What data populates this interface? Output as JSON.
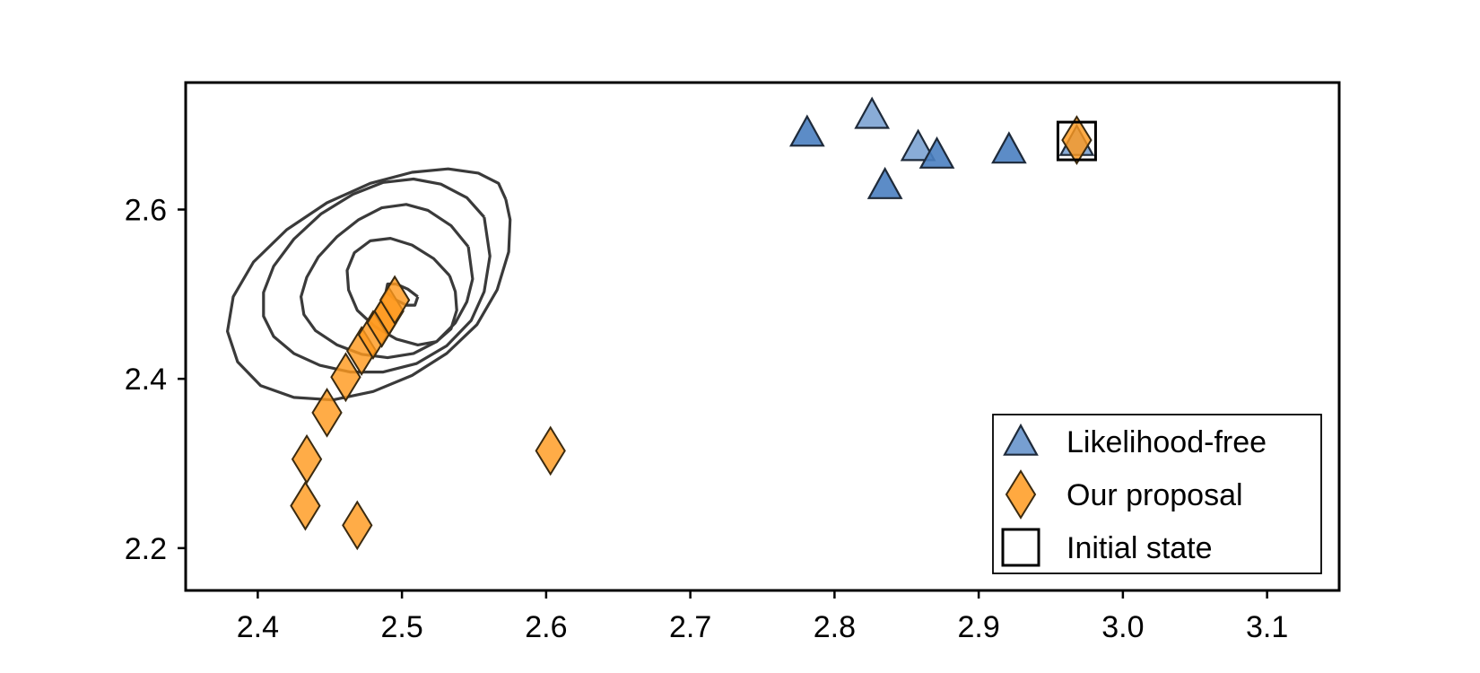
{
  "chart_data": {
    "type": "scatter",
    "title": "",
    "xlabel": "",
    "ylabel": "",
    "xlim": [
      2.35,
      3.15
    ],
    "ylim": [
      2.15,
      2.75
    ],
    "x_ticks": [
      "2.4",
      "2.5",
      "2.6",
      "2.7",
      "2.8",
      "2.9",
      "3.0",
      "3.1"
    ],
    "y_ticks": [
      "2.2",
      "2.4",
      "2.6"
    ],
    "grid": false,
    "legend_position": "lower-right",
    "series": [
      {
        "name": "Likelihood-free",
        "marker": "triangle",
        "color": "#4A7FC1",
        "points": [
          {
            "x": 2.781,
            "y": 2.69,
            "alpha": 0.9
          },
          {
            "x": 2.826,
            "y": 2.711,
            "alpha": 0.65
          },
          {
            "x": 2.858,
            "y": 2.673,
            "alpha": 0.65
          },
          {
            "x": 2.871,
            "y": 2.664,
            "alpha": 0.9
          },
          {
            "x": 2.921,
            "y": 2.67,
            "alpha": 0.9
          },
          {
            "x": 2.835,
            "y": 2.628,
            "alpha": 0.9
          },
          {
            "x": 2.968,
            "y": 2.679,
            "alpha": 0.65
          }
        ]
      },
      {
        "name": "Our proposal",
        "marker": "diamond",
        "color": "#FF9A1F",
        "points": [
          {
            "x": 2.968,
            "y": 2.682
          },
          {
            "x": 2.603,
            "y": 2.315
          },
          {
            "x": 2.434,
            "y": 2.305
          },
          {
            "x": 2.433,
            "y": 2.25
          },
          {
            "x": 2.469,
            "y": 2.227
          },
          {
            "x": 2.448,
            "y": 2.36
          },
          {
            "x": 2.461,
            "y": 2.402
          },
          {
            "x": 2.472,
            "y": 2.433
          },
          {
            "x": 2.48,
            "y": 2.452
          },
          {
            "x": 2.486,
            "y": 2.466
          },
          {
            "x": 2.491,
            "y": 2.48
          },
          {
            "x": 2.495,
            "y": 2.493
          }
        ]
      },
      {
        "name": "Initial state",
        "marker": "square",
        "color": "#000000",
        "points": [
          {
            "x": 2.968,
            "y": 2.681
          }
        ]
      }
    ],
    "contours": [
      [
        [
          2.511,
          2.497
        ],
        [
          2.504,
          2.506
        ],
        [
          2.496,
          2.512
        ],
        [
          2.49,
          2.512
        ],
        [
          2.489,
          2.503
        ],
        [
          2.495,
          2.494
        ],
        [
          2.503,
          2.487
        ],
        [
          2.509,
          2.487
        ],
        [
          2.511,
          2.497
        ]
      ],
      [
        [
          2.533,
          2.522
        ],
        [
          2.522,
          2.542
        ],
        [
          2.507,
          2.558
        ],
        [
          2.492,
          2.566
        ],
        [
          2.478,
          2.563
        ],
        [
          2.467,
          2.549
        ],
        [
          2.462,
          2.528
        ],
        [
          2.463,
          2.505
        ],
        [
          2.469,
          2.481
        ],
        [
          2.481,
          2.462
        ],
        [
          2.496,
          2.447
        ],
        [
          2.511,
          2.44
        ],
        [
          2.524,
          2.444
        ],
        [
          2.534,
          2.459
        ],
        [
          2.538,
          2.481
        ],
        [
          2.537,
          2.503
        ],
        [
          2.533,
          2.522
        ]
      ],
      [
        [
          2.546,
          2.556
        ],
        [
          2.534,
          2.581
        ],
        [
          2.518,
          2.599
        ],
        [
          2.503,
          2.606
        ],
        [
          2.486,
          2.602
        ],
        [
          2.47,
          2.588
        ],
        [
          2.455,
          2.568
        ],
        [
          2.442,
          2.544
        ],
        [
          2.434,
          2.52
        ],
        [
          2.43,
          2.497
        ],
        [
          2.432,
          2.476
        ],
        [
          2.44,
          2.457
        ],
        [
          2.455,
          2.44
        ],
        [
          2.472,
          2.429
        ],
        [
          2.49,
          2.425
        ],
        [
          2.508,
          2.43
        ],
        [
          2.524,
          2.444
        ],
        [
          2.537,
          2.466
        ],
        [
          2.545,
          2.491
        ],
        [
          2.549,
          2.518
        ],
        [
          2.546,
          2.556
        ]
      ],
      [
        [
          2.557,
          2.591
        ],
        [
          2.545,
          2.614
        ],
        [
          2.527,
          2.63
        ],
        [
          2.508,
          2.636
        ],
        [
          2.487,
          2.632
        ],
        [
          2.466,
          2.618
        ],
        [
          2.444,
          2.595
        ],
        [
          2.425,
          2.565
        ],
        [
          2.411,
          2.533
        ],
        [
          2.404,
          2.502
        ],
        [
          2.404,
          2.474
        ],
        [
          2.411,
          2.45
        ],
        [
          2.425,
          2.43
        ],
        [
          2.443,
          2.416
        ],
        [
          2.464,
          2.408
        ],
        [
          2.487,
          2.408
        ],
        [
          2.51,
          2.418
        ],
        [
          2.531,
          2.439
        ],
        [
          2.548,
          2.469
        ],
        [
          2.557,
          2.503
        ],
        [
          2.561,
          2.545
        ],
        [
          2.557,
          2.591
        ]
      ],
      [
        [
          2.572,
          2.612
        ],
        [
          2.567,
          2.631
        ],
        [
          2.553,
          2.643
        ],
        [
          2.532,
          2.648
        ],
        [
          2.507,
          2.644
        ],
        [
          2.478,
          2.631
        ],
        [
          2.448,
          2.608
        ],
        [
          2.42,
          2.576
        ],
        [
          2.397,
          2.538
        ],
        [
          2.383,
          2.497
        ],
        [
          2.379,
          2.456
        ],
        [
          2.386,
          2.42
        ],
        [
          2.402,
          2.392
        ],
        [
          2.425,
          2.378
        ],
        [
          2.452,
          2.375
        ],
        [
          2.48,
          2.385
        ],
        [
          2.507,
          2.404
        ],
        [
          2.531,
          2.43
        ],
        [
          2.552,
          2.464
        ],
        [
          2.566,
          2.505
        ],
        [
          2.574,
          2.55
        ],
        [
          2.575,
          2.588
        ],
        [
          2.572,
          2.612
        ]
      ]
    ]
  }
}
